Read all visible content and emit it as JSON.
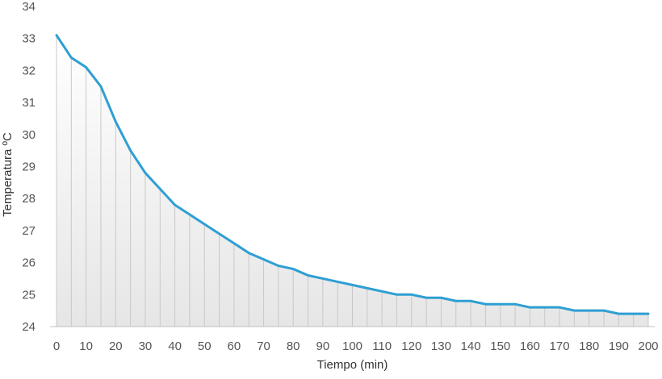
{
  "chart_data": {
    "type": "area",
    "title": "",
    "xlabel": "Tiempo (min)",
    "ylabel": "Temperatura ºC",
    "xlim": [
      0,
      200
    ],
    "ylim": [
      24,
      34
    ],
    "x_ticks": [
      0,
      10,
      20,
      30,
      40,
      50,
      60,
      70,
      80,
      90,
      100,
      110,
      120,
      130,
      140,
      150,
      160,
      170,
      180,
      190,
      200
    ],
    "y_ticks": [
      24,
      25,
      26,
      27,
      28,
      29,
      30,
      31,
      32,
      33,
      34
    ],
    "grid": "vertical drop lines at each data point",
    "legend": "none",
    "colors": {
      "line": "#2e9fd3",
      "area_top": "#ffffff",
      "area_bottom": "#e6e6e6",
      "drop_lines": "#c8c8c8"
    },
    "series": [
      {
        "x": [
          0,
          5,
          10,
          15,
          20,
          25,
          30,
          35,
          40,
          45,
          50,
          55,
          60,
          65,
          70,
          75,
          80,
          85,
          90,
          95,
          100,
          105,
          110,
          115,
          120,
          125,
          130,
          135,
          140,
          145,
          150,
          155,
          160,
          165,
          170,
          175,
          180,
          185,
          190,
          195,
          200
        ],
        "y": [
          33.1,
          32.4,
          32.1,
          31.5,
          30.4,
          29.5,
          28.8,
          28.3,
          27.8,
          27.5,
          27.2,
          26.9,
          26.6,
          26.3,
          26.1,
          25.9,
          25.8,
          25.6,
          25.5,
          25.4,
          25.3,
          25.2,
          25.1,
          25.0,
          25.0,
          24.9,
          24.9,
          24.8,
          24.8,
          24.7,
          24.7,
          24.7,
          24.6,
          24.6,
          24.6,
          24.5,
          24.5,
          24.5,
          24.4,
          24.4,
          24.4
        ]
      }
    ]
  }
}
